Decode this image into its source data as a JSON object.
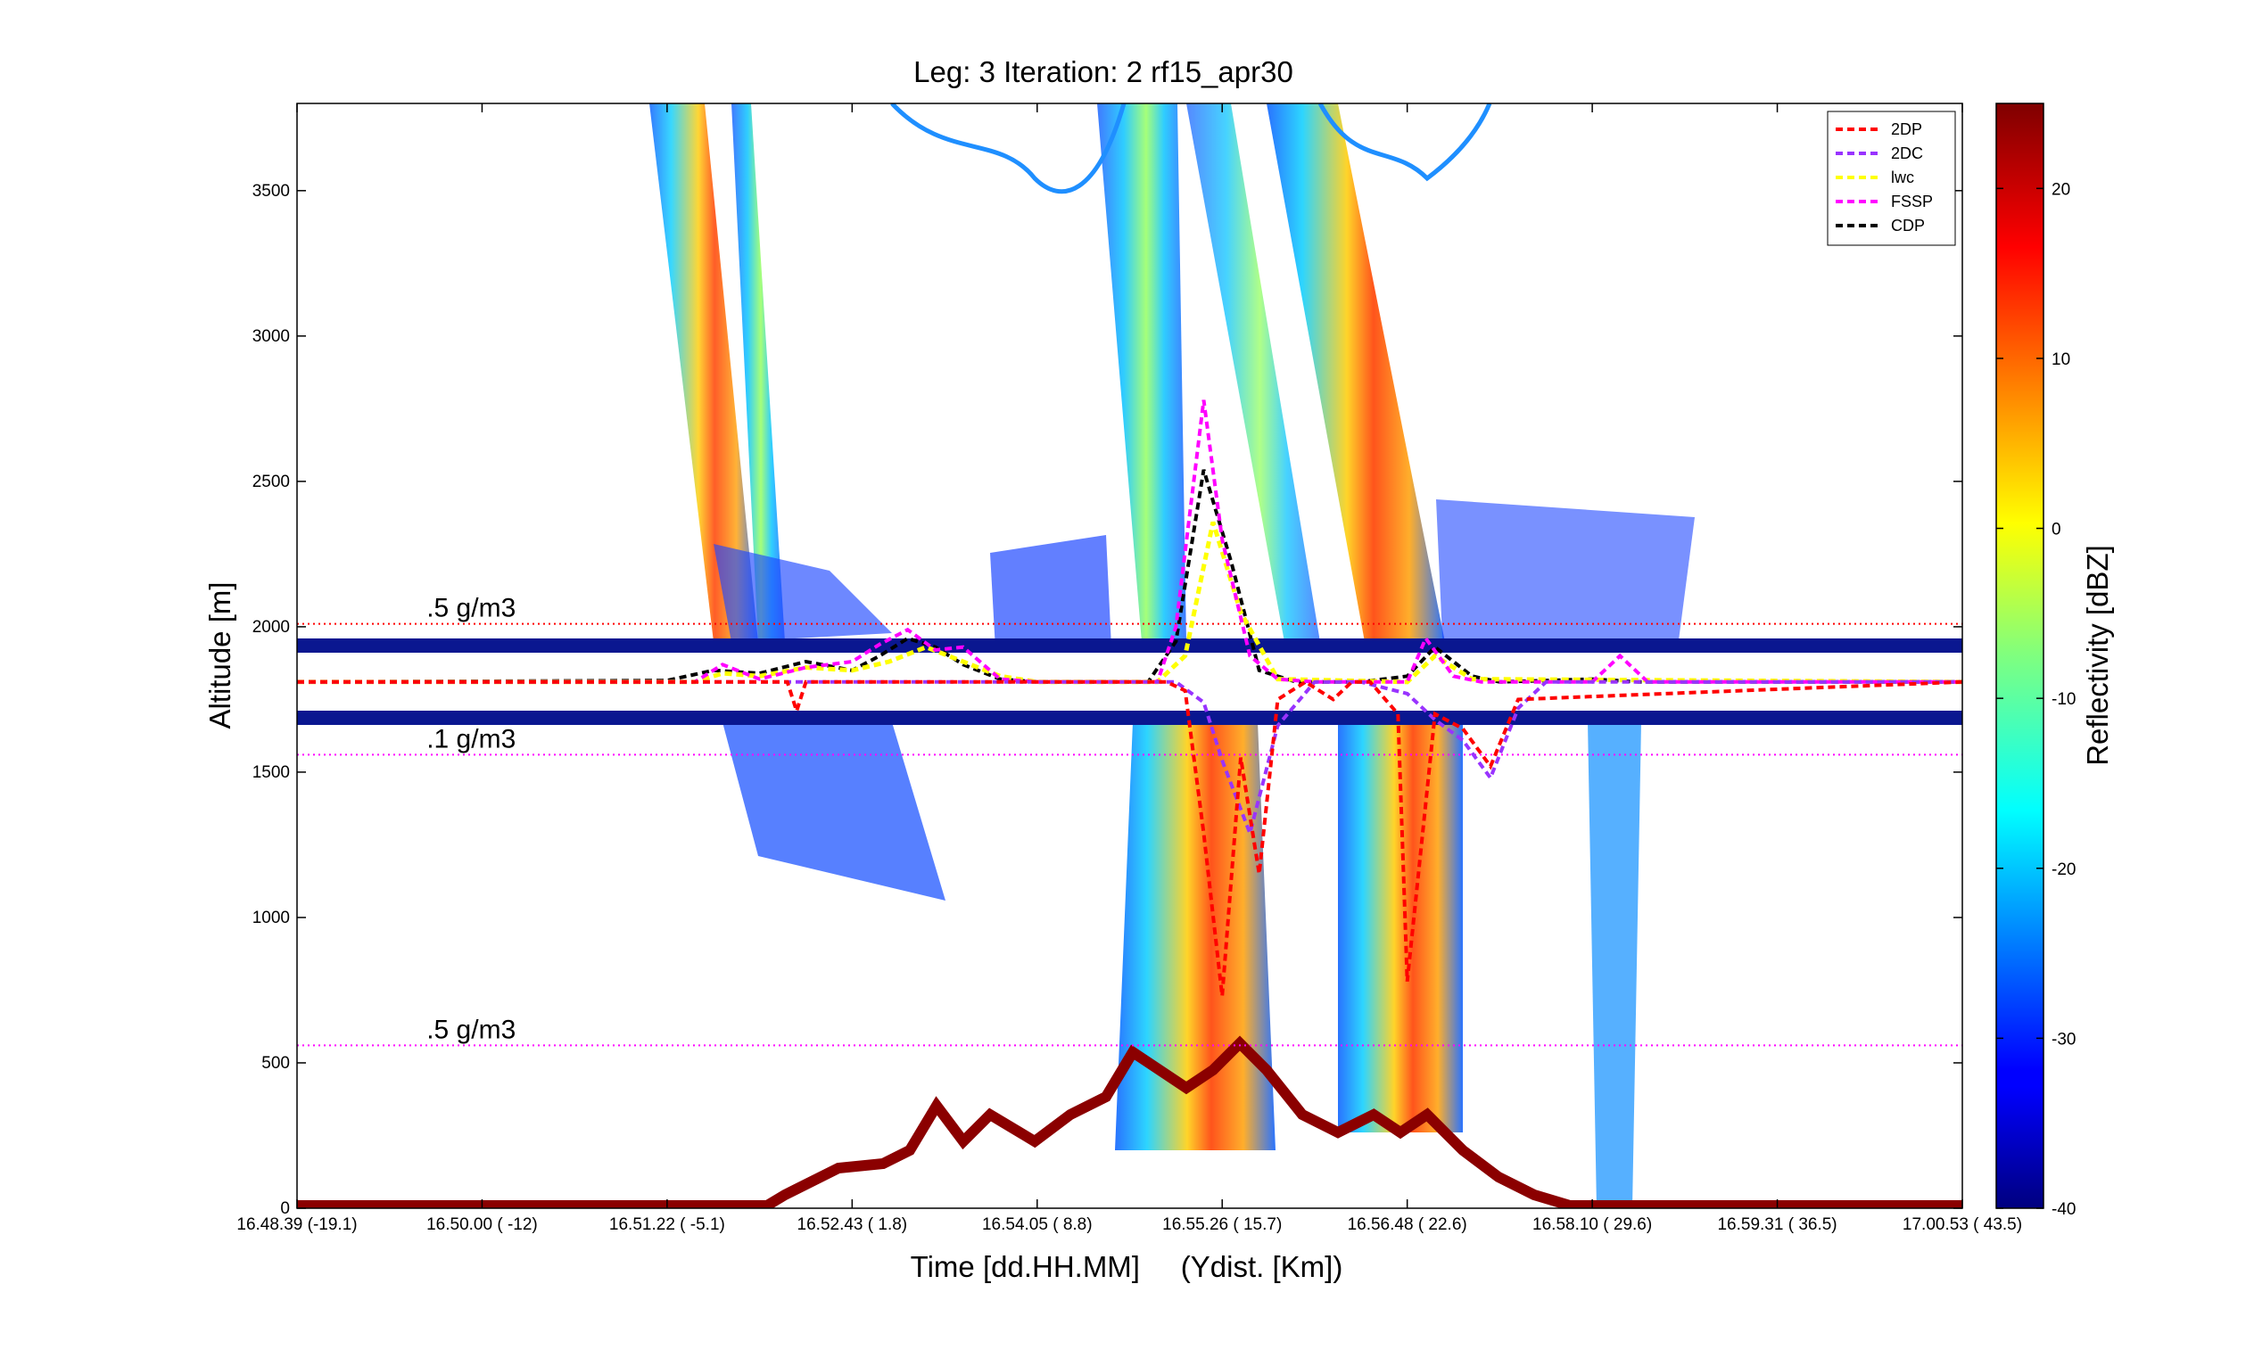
{
  "chart_data": {
    "type": "heatmap",
    "title": "Leg: 3  Iteration: 2  rf15_apr30",
    "xlabel": "Time [dd.HH.MM]     (Ydist. [Km])",
    "ylabel": "Altitude [m]",
    "colorbar_label": "Reflectivity [dBZ]",
    "colormap": "jet",
    "clim": [
      -40,
      25
    ],
    "colorbar_ticks": [
      "20",
      "10",
      "0",
      "-10",
      "-20",
      "-30",
      "-40"
    ],
    "colorbar_tick_values": [
      20,
      10,
      0,
      -10,
      -20,
      -30,
      -40
    ],
    "xlim": [
      0,
      18
    ],
    "ylim": [
      0,
      3800
    ],
    "yticks": [
      0,
      500,
      1000,
      1500,
      2000,
      2500,
      3000,
      3500
    ],
    "ytick_labels": [
      "0",
      "500",
      "1000",
      "1500",
      "2000",
      "2500",
      "3000",
      "3500"
    ],
    "xticks": [
      {
        "pos": 0,
        "time": "16.48.39",
        "dist": "(-19.1)"
      },
      {
        "pos": 2,
        "time": "16.50.00",
        "dist": "(  -12)"
      },
      {
        "pos": 4,
        "time": "16.51.22",
        "dist": "( -5.1)"
      },
      {
        "pos": 6,
        "time": "16.52.43",
        "dist": "(  1.8)"
      },
      {
        "pos": 8,
        "time": "16.54.05",
        "dist": "(  8.8)"
      },
      {
        "pos": 10,
        "time": "16.55.26",
        "dist": "( 15.7)"
      },
      {
        "pos": 12,
        "time": "16.56.48",
        "dist": "( 22.6)"
      },
      {
        "pos": 14,
        "time": "16.58.10",
        "dist": "( 29.6)"
      },
      {
        "pos": 16,
        "time": "16.59.31",
        "dist": "( 36.5)"
      },
      {
        "pos": 18,
        "time": "17.00.53",
        "dist": "( 43.5)"
      }
    ],
    "aircraft_altitude": 1810,
    "annotations": [
      {
        "text": ".5 g/m3",
        "x": 1.4,
        "y": 2010,
        "line_y": 2010,
        "color": "#ff0000"
      },
      {
        "text": ".1 g/m3",
        "x": 1.4,
        "y": 1560,
        "line_y": 1560,
        "color": "#ff00ff"
      },
      {
        "text": ".5 g/m3",
        "x": 1.4,
        "y": 560,
        "line_y": 560,
        "color": "#ff00ff"
      }
    ],
    "legend": {
      "location": "top-right",
      "entries": [
        {
          "name": "2DP",
          "color": "#ff0000"
        },
        {
          "name": "2DC",
          "color": "#9933ff"
        },
        {
          "name": "lwc",
          "color": "#ffff00"
        },
        {
          "name": "FSSP",
          "color": "#ff00ff"
        },
        {
          "name": "CDP",
          "color": "#000000"
        }
      ]
    },
    "series": [
      {
        "name": "CDP",
        "x": [
          0,
          4.0,
          4.5,
          5.0,
          5.5,
          6.0,
          6.3,
          6.6,
          6.9,
          7.2,
          7.6,
          8.0,
          9.2,
          9.5,
          9.8,
          10.1,
          10.4,
          10.8,
          11.5,
          12.0,
          12.3,
          12.7,
          13.0,
          14.0,
          14.5,
          18.0
        ],
        "y": [
          1810,
          1815,
          1850,
          1840,
          1880,
          1850,
          1900,
          1960,
          1930,
          1870,
          1820,
          1810,
          1810,
          1950,
          2540,
          2220,
          1850,
          1810,
          1810,
          1830,
          1930,
          1830,
          1810,
          1820,
          1810,
          1810
        ]
      },
      {
        "name": "lwc",
        "x": [
          0,
          4.3,
          4.6,
          5.0,
          5.5,
          6.0,
          6.4,
          6.8,
          7.2,
          7.6,
          8.0,
          9.3,
          9.6,
          9.9,
          10.2,
          10.6,
          12.0,
          12.3,
          12.7,
          18.0
        ],
        "y": [
          1810,
          1810,
          1840,
          1830,
          1860,
          1850,
          1880,
          1930,
          1880,
          1830,
          1810,
          1810,
          1900,
          2360,
          2050,
          1820,
          1810,
          1900,
          1820,
          1810
        ]
      },
      {
        "name": "FSSP",
        "x": [
          0,
          4.3,
          4.6,
          5.0,
          5.5,
          6.0,
          6.3,
          6.6,
          6.9,
          7.2,
          7.6,
          8.0,
          9.3,
          9.5,
          9.8,
          10.0,
          10.3,
          10.6,
          11.0,
          12.0,
          12.2,
          12.5,
          12.8,
          14.0,
          14.3,
          14.6,
          18.0
        ],
        "y": [
          1810,
          1810,
          1870,
          1820,
          1860,
          1880,
          1940,
          1990,
          1920,
          1930,
          1820,
          1810,
          1810,
          2000,
          2780,
          2300,
          1900,
          1820,
          1810,
          1810,
          1960,
          1830,
          1810,
          1810,
          1900,
          1810,
          1810
        ]
      },
      {
        "name": "2DC",
        "x": [
          0,
          9.5,
          9.8,
          10.0,
          10.3,
          10.6,
          11.0,
          11.5,
          12.0,
          12.3,
          12.6,
          12.9,
          13.2,
          13.5,
          18.0
        ],
        "y": [
          1810,
          1810,
          1740,
          1540,
          1290,
          1660,
          1810,
          1810,
          1770,
          1680,
          1610,
          1480,
          1720,
          1810,
          1810
        ]
      },
      {
        "name": "2DP",
        "x": [
          0,
          5.3,
          5.4,
          5.5,
          9.4,
          9.6,
          9.8,
          10.0,
          10.2,
          10.4,
          10.6,
          10.9,
          11.2,
          11.4,
          11.6,
          11.9,
          12.0,
          12.3,
          12.6,
          12.9,
          13.2,
          18.0
        ],
        "y": [
          1810,
          1810,
          1710,
          1810,
          1810,
          1780,
          1290,
          730,
          1550,
          1150,
          1750,
          1810,
          1750,
          1810,
          1810,
          1700,
          780,
          1700,
          1650,
          1520,
          1750,
          1810
        ]
      }
    ]
  }
}
